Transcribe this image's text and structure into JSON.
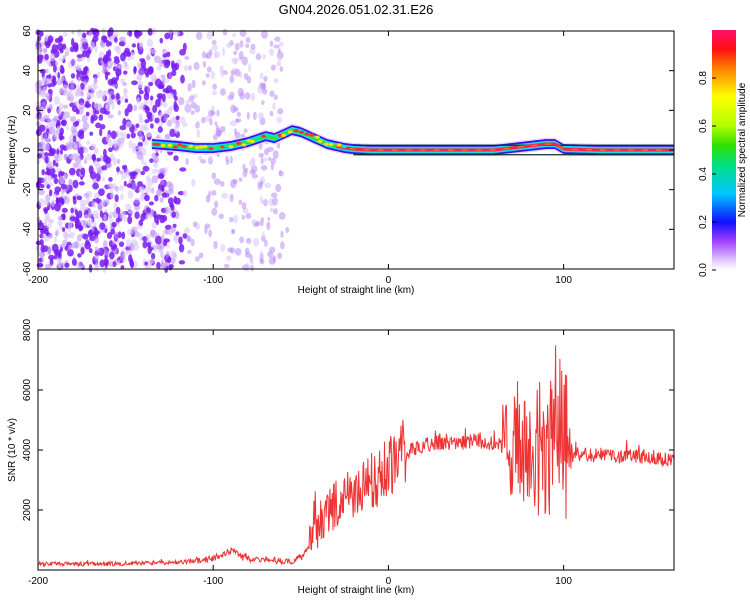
{
  "title": "GN04.2026.051.02.31.E26",
  "spectrogram": {
    "xlabel": "Height of straight line (km)",
    "ylabel": "Frequency (Hz)",
    "xlim": [
      -200,
      163
    ],
    "ylim": [
      -60,
      60
    ],
    "xticks": [
      "-200",
      "-100",
      "0",
      "100"
    ],
    "yticks": [
      "-60",
      "-40",
      "-20",
      "0",
      "20",
      "40",
      "60"
    ],
    "colorbar": {
      "label": "Normalized spectral amplitude",
      "range": [
        0,
        1
      ],
      "ticks": [
        "0.0",
        "0.2",
        "0.4",
        "0.6",
        "0.8"
      ]
    },
    "doppler_trace": {
      "x": [
        -135,
        -120,
        -110,
        -100,
        -90,
        -80,
        -70,
        -65,
        -60,
        -55,
        -50,
        -45,
        -40,
        -35,
        -30,
        -25,
        -20,
        -10,
        0,
        20,
        40,
        60,
        70,
        80,
        90,
        95,
        100,
        120,
        163
      ],
      "y": [
        3,
        2,
        1,
        1,
        2,
        4,
        7,
        6,
        8,
        10,
        9,
        7,
        5,
        3,
        2,
        1,
        0.5,
        0,
        0,
        0,
        0,
        0,
        1,
        2,
        3,
        3,
        0.5,
        0,
        0
      ]
    }
  },
  "chart_data": {
    "type": "line",
    "xlabel": "Height of straight line (km)",
    "ylabel": "SNR (10 * v/v)",
    "xlim": [
      -200,
      163
    ],
    "ylim": [
      0,
      8000
    ],
    "xticks": [
      "-200",
      "-100",
      "0",
      "100"
    ],
    "yticks": [
      "2000",
      "4000",
      "6000",
      "8000"
    ],
    "color": "#ee3333",
    "series": [
      {
        "x": [
          -200,
          -180,
          -160,
          -140,
          -120,
          -110,
          -100,
          -95,
          -90,
          -85,
          -80,
          -75,
          -70,
          -65,
          -60,
          -55,
          -50,
          -45,
          -40,
          -35,
          -30,
          -25,
          -20,
          -15,
          -10,
          -5,
          0,
          5,
          10,
          15,
          20,
          25,
          30,
          40,
          50,
          60,
          70,
          75,
          80,
          85,
          90,
          95,
          98,
          100,
          105,
          110,
          120,
          130,
          140,
          150,
          163
        ],
        "y": [
          200,
          200,
          200,
          220,
          250,
          300,
          380,
          500,
          650,
          500,
          380,
          350,
          350,
          320,
          300,
          300,
          400,
          800,
          1500,
          1900,
          2200,
          2400,
          2500,
          2700,
          2900,
          3100,
          3400,
          3700,
          3900,
          4050,
          4150,
          4200,
          4250,
          4250,
          4300,
          4200,
          4100,
          4050,
          4000,
          4100,
          4000,
          4200,
          4800,
          4400,
          3900,
          3850,
          3850,
          3800,
          3800,
          3750,
          3650
        ]
      }
    ]
  }
}
